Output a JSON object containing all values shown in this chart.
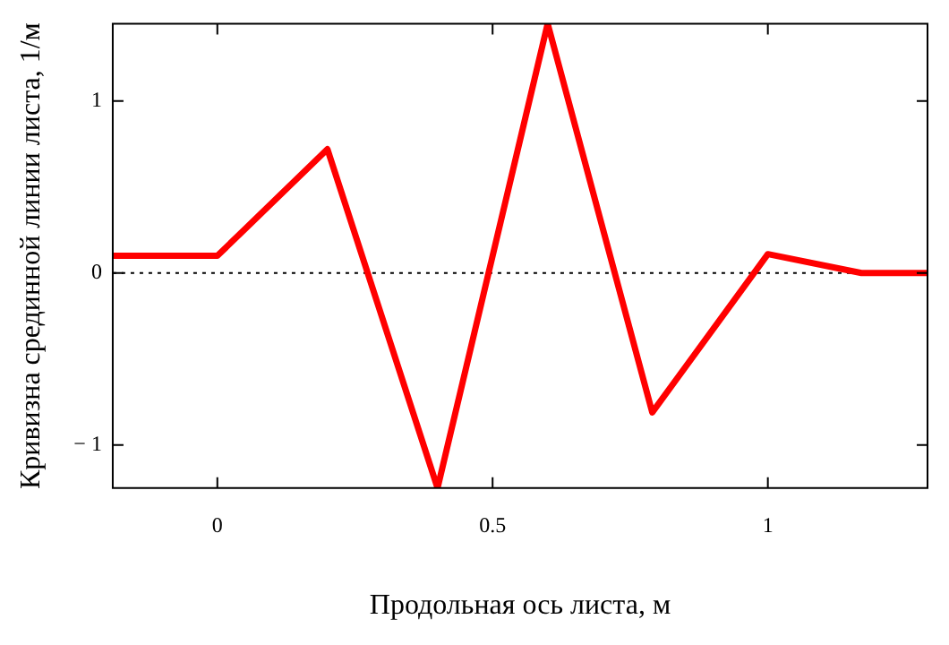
{
  "chart_data": {
    "type": "line",
    "xlabel": "Продольная ось листа, м",
    "ylabel": "Кривизна срединной линии листа, 1/м",
    "x": [
      -0.19,
      0,
      0.2,
      0.4,
      0.6,
      0.79,
      1.0,
      1.17,
      1.29
    ],
    "series": [
      {
        "color": "#ff0000",
        "values": [
          0.1,
          0.1,
          0.72,
          -1.25,
          1.45,
          -0.81,
          0.11,
          0,
          0
        ]
      }
    ],
    "xlim": [
      -0.19,
      1.29
    ],
    "ylim": [
      -1.25,
      1.45
    ],
    "xticks": [
      0,
      0.5,
      1
    ],
    "yticks": [
      {
        "value": -1,
        "label": "− 1"
      },
      0,
      1
    ],
    "ref_lines": [
      {
        "axis": "y",
        "value": 0,
        "line_style": "dotted",
        "color": "#000000"
      }
    ],
    "grid": false,
    "legend": false,
    "marker": "none",
    "line_style": "solid"
  }
}
